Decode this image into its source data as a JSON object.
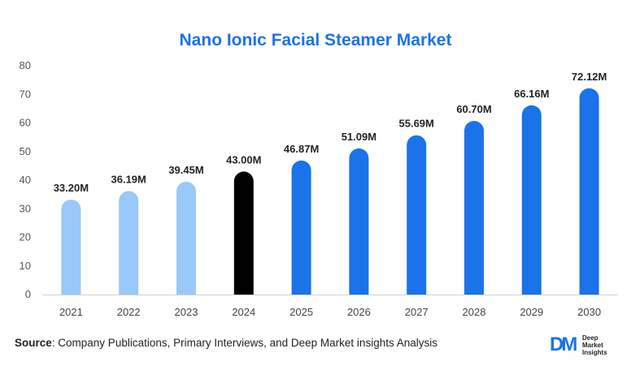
{
  "chart_data": {
    "type": "bar",
    "title": "Nano Ionic Facial Steamer Market",
    "categories": [
      "2021",
      "2022",
      "2023",
      "2024",
      "2025",
      "2026",
      "2027",
      "2028",
      "2029",
      "2030"
    ],
    "values": [
      33.2,
      36.19,
      39.45,
      43.0,
      46.87,
      51.09,
      55.69,
      60.7,
      66.16,
      72.12
    ],
    "data_labels": [
      "33.20M",
      "36.19M",
      "39.45M",
      "43.00M",
      "46.87M",
      "51.09M",
      "55.69M",
      "60.70M",
      "66.16M",
      "72.12M"
    ],
    "bar_colors": [
      "#99c8fb",
      "#99c8fb",
      "#99c8fb",
      "#000000",
      "#1a73e8",
      "#1a73e8",
      "#1a73e8",
      "#1a73e8",
      "#1a73e8",
      "#1a73e8"
    ],
    "ylim": [
      0,
      80
    ],
    "yticks": [
      0,
      10,
      20,
      30,
      40,
      50,
      60,
      70,
      80
    ],
    "grid": false,
    "xlabel": "",
    "ylabel": ""
  },
  "source": {
    "label": "Source",
    "text": ": Company Publications, Primary Interviews, and Deep Market insights Analysis"
  },
  "logo": {
    "mark": "DM",
    "line1": "Deep",
    "line2": "Market",
    "line3": "Insights"
  },
  "colors": {
    "title": "#1a73e8",
    "historical": "#99c8fb",
    "base_year": "#000000",
    "forecast": "#1a73e8"
  }
}
